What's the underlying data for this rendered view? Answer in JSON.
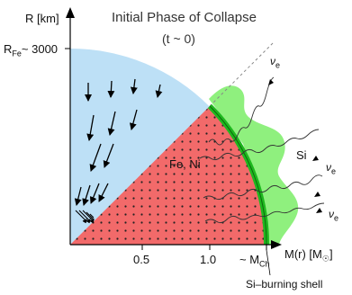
{
  "title": "Initial Phase of Collapse",
  "subtitle": "(t ~ 0)",
  "y_axis": {
    "label": "R [km]",
    "tick_main": "R",
    "tick_sub": "Fe",
    "tick_value": "~ 3000"
  },
  "x_axis": {
    "label_main": "M(r) [M",
    "label_sub": "☉",
    "label_close": "]",
    "ticks": [
      "0.5",
      "1.0"
    ],
    "mch_main": "~ M",
    "mch_sub": "Ch"
  },
  "regions": {
    "core": "Fe, Ni",
    "outer": "Si"
  },
  "neutrino": {
    "symbol": "ν",
    "sub": "e"
  },
  "shell_label": "Si–burning shell",
  "colors": {
    "blue_region": "#bde0f6",
    "red_region": "#f26a6a",
    "green_region": "#8ff07e",
    "shell": "#1fb81f",
    "axis": "#000000"
  }
}
